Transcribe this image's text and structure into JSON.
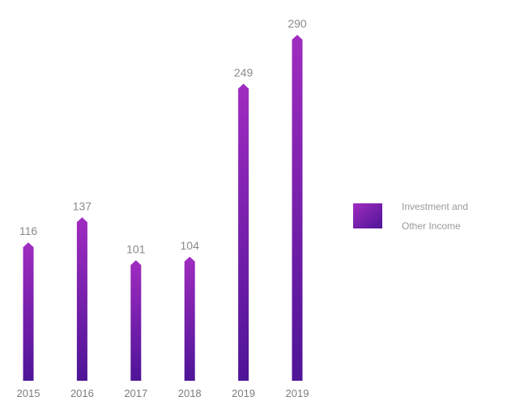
{
  "chart_data": {
    "type": "bar",
    "title": "",
    "xlabel": "",
    "ylabel": "",
    "ylim": [
      0,
      290
    ],
    "grid": false,
    "legend_position": "right",
    "categories": [
      "2015",
      "2016",
      "2017",
      "2018",
      "2019",
      "2019"
    ],
    "series": [
      {
        "name": "Investment and Other Income",
        "legend_lines": [
          "Investment and",
          "Other Income"
        ],
        "values": [
          116,
          137,
          101,
          104,
          249,
          290
        ],
        "value_labels": [
          "116",
          "137",
          "101",
          "104",
          "249",
          "290"
        ],
        "color_top": "#a02cc0",
        "color_bottom": "#4e1596"
      }
    ]
  }
}
